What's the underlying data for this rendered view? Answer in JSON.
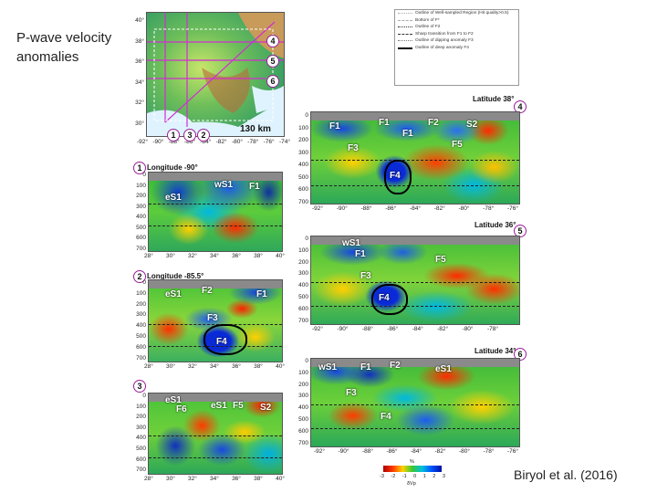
{
  "slide": {
    "title": "P-wave velocity anomalies",
    "credit": "Biryol et al. (2016)"
  },
  "map": {
    "scale_label": "130 km",
    "lat_ticks": [
      "40°",
      "38°",
      "36°",
      "34°",
      "32°",
      "30°"
    ],
    "lon_ticks": [
      "-92°",
      "-90°",
      "-88°",
      "-86°",
      "-84°",
      "-82°",
      "-80°",
      "-78°",
      "-76°",
      "-74°"
    ],
    "section_numbers": [
      "1",
      "2",
      "3",
      "4",
      "5",
      "6"
    ]
  },
  "legend": {
    "items": [
      "Outline of Well-sampled Region (Hit quality>0.5)",
      "Bottom of F*",
      "Outline of F2",
      "Sharp transition from F1 to F2",
      "Outline of dipping anomaly F3",
      "Outline of deep anomaly F4"
    ]
  },
  "colorbar": {
    "ticks": [
      "-3",
      "-2",
      "-1",
      "0",
      "1",
      "2",
      "3"
    ],
    "unit": "%",
    "quantity": "δVp"
  },
  "sections": [
    {
      "num": "1",
      "title": "Longitude -90°",
      "xticks": [
        "28°",
        "30°",
        "32°",
        "34°",
        "36°",
        "38°",
        "40°"
      ],
      "labels": [
        "eS1",
        "wS1",
        "F1"
      ]
    },
    {
      "num": "2",
      "title": "Longitude -85.5°",
      "xticks": [
        "28°",
        "30°",
        "32°",
        "34°",
        "36°",
        "38°",
        "40°"
      ],
      "labels": [
        "eS1",
        "F2",
        "F1",
        "F3",
        "F4"
      ]
    },
    {
      "num": "3",
      "title": "",
      "xticks": [
        "28°",
        "30°",
        "32°",
        "34°",
        "36°",
        "38°",
        "40°"
      ],
      "labels": [
        "eS1",
        "F6",
        "eS1",
        "F5",
        "S2"
      ]
    },
    {
      "num": "4",
      "title": "Latitude 38°",
      "xticks": [
        "-92°",
        "-90°",
        "-88°",
        "-86°",
        "-84°",
        "-82°",
        "-80°",
        "-78°",
        "-76°"
      ],
      "labels": [
        "F1",
        "F1",
        "F2",
        "S2",
        "F1",
        "F3",
        "F5",
        "F4"
      ]
    },
    {
      "num": "5",
      "title": "Latitude 36°",
      "xticks": [
        "-92°",
        "-90°",
        "-88°",
        "-86°",
        "-84°",
        "-82°",
        "-80°",
        "-78°"
      ],
      "labels": [
        "wS1",
        "F1",
        "F5",
        "F3",
        "F4"
      ]
    },
    {
      "num": "6",
      "title": "Latitude 34°",
      "xticks": [
        "-92°",
        "-90°",
        "-88°",
        "-86°",
        "-84°",
        "-82°",
        "-80°",
        "-78°",
        "-76°"
      ],
      "labels": [
        "wS1",
        "F1",
        "F2",
        "eS1",
        "F3",
        "F4"
      ]
    }
  ],
  "depth_ticks": [
    "0",
    "100",
    "200",
    "300",
    "400",
    "500",
    "600",
    "700"
  ]
}
